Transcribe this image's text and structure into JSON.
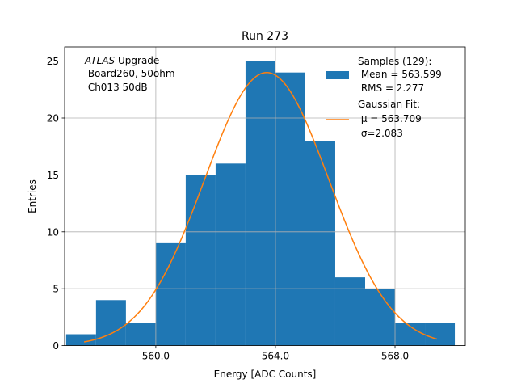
{
  "chart_data": {
    "type": "bar",
    "title": "Run 273",
    "xlabel": "Energy [ADC Counts]",
    "ylabel": "Entries",
    "xlim": [
      556.95,
      570.35
    ],
    "ylim": [
      0,
      26.25
    ],
    "grid": true,
    "xticks": [
      560,
      564,
      568
    ],
    "xtick_labels": [
      "560.0",
      "564.0",
      "568.0"
    ],
    "yticks": [
      0,
      5,
      10,
      15,
      20,
      25
    ],
    "bin_edges": [
      557.0,
      558.0,
      559.0,
      560.0,
      561.0,
      562.0,
      563.0,
      564.0,
      565.0,
      566.0,
      567.0,
      568.0,
      569.0,
      570.0
    ],
    "counts": [
      1,
      4,
      2,
      9,
      15,
      16,
      25,
      24,
      18,
      6,
      5,
      2,
      2
    ],
    "colors": {
      "hist": "#1f77b4",
      "fit": "#ff7f0e",
      "grid": "#b0b0b0"
    },
    "fit": {
      "mu": 563.709,
      "sigma": 2.083,
      "amplitude": 24,
      "x_range": [
        557.6,
        569.4
      ]
    },
    "annotation": {
      "italic": "ATLAS",
      "rest": " Upgrade",
      "line2": " Board260, 50ohm",
      "line3": " Ch013 50dB"
    },
    "legend": {
      "placement": "top-right",
      "hist": {
        "line1": "Samples (129):",
        "line2": " Mean = 563.599",
        "line3": " RMS = 2.277"
      },
      "fit": {
        "line1": "Gaussian Fit:",
        "line2": " μ = 563.709",
        "line3": " σ=2.083"
      }
    }
  }
}
